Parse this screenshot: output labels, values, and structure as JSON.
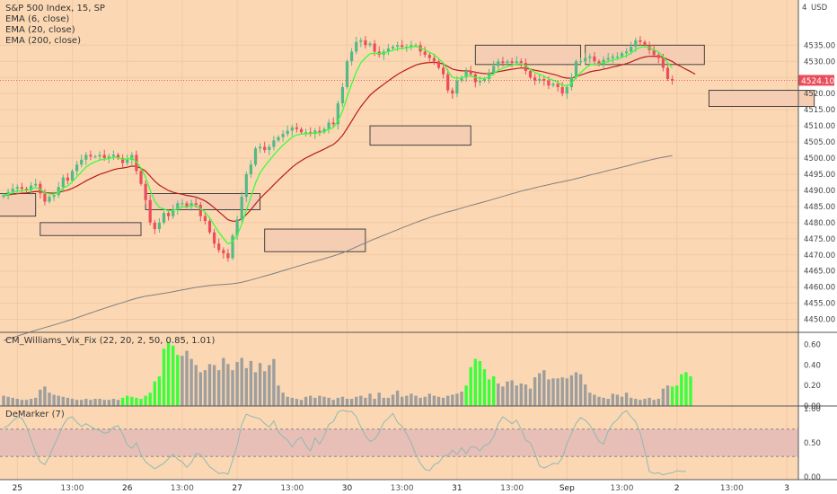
{
  "chart_data": [
    {
      "type": "candlestick",
      "title": "S&P 500 Index, 15, SP",
      "currency": "USD",
      "currency_marker": "4",
      "price_tag": "4524.10",
      "ylim": [
        4446,
        4549
      ],
      "yticks": [
        "4535.00",
        "4530.00",
        "4525.00",
        "4520.00",
        "4515.00",
        "4510.00",
        "4505.00",
        "4500.00",
        "4495.00",
        "4490.00",
        "4485.00",
        "4480.00",
        "4475.00",
        "4470.00",
        "4465.00",
        "4460.00",
        "4455.00",
        "4450.00"
      ],
      "ytick_values": [
        4535,
        4530,
        4525,
        4520,
        4515,
        4510,
        4505,
        4500,
        4495,
        4490,
        4485,
        4480,
        4475,
        4470,
        4465,
        4460,
        4455,
        4450
      ],
      "xticks": [
        {
          "label": "25",
          "bar": 3
        },
        {
          "label": "13:00",
          "bar": 15
        },
        {
          "label": "26",
          "bar": 27
        },
        {
          "label": "13:00",
          "bar": 39
        },
        {
          "label": "27",
          "bar": 51
        },
        {
          "label": "13:00",
          "bar": 63
        },
        {
          "label": "30",
          "bar": 75
        },
        {
          "label": "13:00",
          "bar": 87
        },
        {
          "label": "31",
          "bar": 99
        },
        {
          "label": "13:00",
          "bar": 111
        },
        {
          "label": "Sep",
          "bar": 123
        },
        {
          "label": "13:00",
          "bar": 135
        },
        {
          "label": "2",
          "bar": 147
        },
        {
          "label": "13:00",
          "bar": 159
        },
        {
          "label": "3",
          "bar": 171
        }
      ],
      "legend": [
        "EMA (6, close)",
        "EMA (20, close)",
        "EMA (200, close)"
      ],
      "close": [
        4488.5,
        4489.5,
        4490.5,
        4491,
        4490.5,
        4490,
        4491.5,
        4492,
        4489,
        4486.5,
        4488,
        4488.5,
        4491,
        4494,
        4493,
        4496,
        4498,
        4499.5,
        4501,
        4500.5,
        4500.5,
        4501,
        4500,
        4500.5,
        4501,
        4500,
        4498.5,
        4499.5,
        4501,
        4496,
        4492,
        4487,
        4480,
        4478,
        4480,
        4483,
        4482,
        4484,
        4486,
        4486,
        4485,
        4486,
        4485.5,
        4482,
        4480.5,
        4477,
        4473.5,
        4471.5,
        4470.5,
        4469,
        4476,
        4481,
        4488,
        4495,
        4498,
        4503,
        4503.5,
        4502.5,
        4503.5,
        4505.5,
        4506.5,
        4507.5,
        4508.5,
        4509.5,
        4509,
        4508,
        4508,
        4507.5,
        4508.5,
        4508,
        4509,
        4511,
        4510.5,
        4517,
        4522,
        4530,
        4533,
        4536,
        4536.5,
        4535,
        4535.5,
        4533,
        4532,
        4533,
        4534,
        4534.5,
        4535,
        4534.5,
        4534.5,
        4535,
        4535,
        4533,
        4532,
        4531,
        4530,
        4528,
        4526,
        4521,
        4520,
        4524,
        4525,
        4527,
        4526,
        4523.5,
        4524,
        4524.5,
        4526.5,
        4528.5,
        4530,
        4529.5,
        4530,
        4529.5,
        4530,
        4529.5,
        4527,
        4525,
        4524,
        4524.5,
        4524,
        4522.5,
        4523,
        4522,
        4520,
        4522,
        4525,
        4530,
        4530,
        4531,
        4531.5,
        4530,
        4529,
        4530.5,
        4531,
        4531.5,
        4531.5,
        4532.5,
        4533,
        4534.5,
        4536.5,
        4536,
        4535,
        4533.5,
        4532,
        4531,
        4528,
        4524.5,
        4524.1
      ],
      "lines": [
        {
          "name": "EMA (6, close)",
          "color": "#3aff3a"
        },
        {
          "name": "EMA (20, close)",
          "color": "#b71c1c"
        },
        {
          "name": "EMA (200, close)",
          "color": "#7f7f7f"
        }
      ],
      "boxes": [
        {
          "b0": -2,
          "b1": 7,
          "p0": 4482,
          "p1": 4489
        },
        {
          "b0": 8,
          "b1": 30,
          "p0": 4476,
          "p1": 4480
        },
        {
          "b0": 31,
          "b1": 56,
          "p0": 4484,
          "p1": 4489
        },
        {
          "b0": 57,
          "b1": 79,
          "p0": 4471,
          "p1": 4478
        },
        {
          "b0": 80,
          "b1": 102,
          "p0": 4504,
          "p1": 4510
        },
        {
          "b0": 103,
          "b1": 126,
          "p0": 4529,
          "p1": 4535
        },
        {
          "b0": 127,
          "b1": 153,
          "p0": 4529,
          "p1": 4535
        },
        {
          "b0": 154,
          "b1": 177,
          "p0": 4516,
          "p1": 4521
        }
      ]
    },
    {
      "type": "bar",
      "title": "CM_Williams_Vix_Fix (22, 20, 2, 50, 0.85, 1.01)",
      "ylim": [
        0,
        0.72
      ],
      "yticks": [
        "0.60",
        "0.40",
        "0.20",
        "0.00"
      ],
      "ytick_values": [
        0.6,
        0.4,
        0.2,
        0
      ],
      "values": [
        0.1,
        0.09,
        0.08,
        0.07,
        0.06,
        0.06,
        0.07,
        0.08,
        0.16,
        0.19,
        0.13,
        0.11,
        0.1,
        0.09,
        0.08,
        0.07,
        0.06,
        0.06,
        0.07,
        0.06,
        0.07,
        0.07,
        0.06,
        0.06,
        0.07,
        0.06,
        0.08,
        0.1,
        0.09,
        0.08,
        0.07,
        0.1,
        0.13,
        0.24,
        0.29,
        0.56,
        0.62,
        0.59,
        0.5,
        0.49,
        0.54,
        0.46,
        0.4,
        0.33,
        0.35,
        0.41,
        0.4,
        0.35,
        0.47,
        0.41,
        0.35,
        0.43,
        0.47,
        0.37,
        0.44,
        0.33,
        0.42,
        0.34,
        0.4,
        0.46,
        0.2,
        0.13,
        0.09,
        0.08,
        0.07,
        0.06,
        0.09,
        0.1,
        0.08,
        0.1,
        0.09,
        0.08,
        0.06,
        0.08,
        0.09,
        0.07,
        0.07,
        0.09,
        0.1,
        0.08,
        0.12,
        0.07,
        0.13,
        0.08,
        0.08,
        0.11,
        0.15,
        0.09,
        0.1,
        0.12,
        0.1,
        0.08,
        0.09,
        0.12,
        0.1,
        0.09,
        0.08,
        0.1,
        0.11,
        0.12,
        0.14,
        0.2,
        0.38,
        0.46,
        0.44,
        0.36,
        0.26,
        0.29,
        0.22,
        0.19,
        0.24,
        0.25,
        0.2,
        0.22,
        0.21,
        0.17,
        0.28,
        0.32,
        0.35,
        0.26,
        0.27,
        0.27,
        0.28,
        0.27,
        0.3,
        0.33,
        0.31,
        0.21,
        0.13,
        0.11,
        0.09,
        0.08,
        0.07,
        0.12,
        0.11,
        0.09,
        0.13,
        0.08,
        0.07,
        0.06,
        0.07,
        0.08,
        0.06,
        0.07,
        0.17,
        0.2,
        0.19,
        0.2,
        0.31,
        0.33,
        0.29
      ],
      "highlighted": [
        26,
        27,
        28,
        29,
        30,
        31,
        32,
        33,
        34,
        35,
        36,
        37,
        38,
        101,
        102,
        103,
        104,
        105,
        106,
        107,
        146,
        147,
        148,
        149,
        150,
        151,
        152
      ],
      "colors": {
        "normal": "#9e9e9e",
        "high": "#3aff3a"
      }
    },
    {
      "type": "line",
      "title": "DeMarker (7)",
      "ylim": [
        -0.04,
        1.04
      ],
      "yticks": [
        "1.00",
        "0.50",
        "0.00"
      ],
      "ytick_values": [
        1,
        0.5,
        0
      ],
      "band": [
        0.3,
        0.7
      ],
      "band_color": "#e8bfb7",
      "color": "#8fb9b2",
      "values": [
        0.72,
        0.75,
        0.82,
        0.88,
        0.86,
        0.74,
        0.55,
        0.36,
        0.22,
        0.18,
        0.3,
        0.46,
        0.6,
        0.76,
        0.86,
        0.88,
        0.8,
        0.74,
        0.78,
        0.74,
        0.7,
        0.68,
        0.64,
        0.66,
        0.73,
        0.75,
        0.63,
        0.47,
        0.42,
        0.5,
        0.33,
        0.22,
        0.17,
        0.12,
        0.16,
        0.2,
        0.27,
        0.33,
        0.26,
        0.22,
        0.14,
        0.21,
        0.34,
        0.33,
        0.24,
        0.15,
        0.1,
        0.05,
        0.06,
        0.04,
        0.24,
        0.46,
        0.77,
        0.92,
        0.89,
        0.87,
        0.85,
        0.78,
        0.73,
        0.82,
        0.66,
        0.59,
        0.54,
        0.44,
        0.54,
        0.58,
        0.46,
        0.38,
        0.57,
        0.48,
        0.6,
        0.77,
        0.81,
        0.95,
        0.98,
        0.96,
        0.96,
        0.88,
        0.73,
        0.6,
        0.52,
        0.55,
        0.65,
        0.8,
        0.86,
        0.93,
        0.8,
        0.74,
        0.63,
        0.5,
        0.33,
        0.2,
        0.11,
        0.09,
        0.18,
        0.21,
        0.3,
        0.32,
        0.39,
        0.33,
        0.43,
        0.34,
        0.44,
        0.44,
        0.38,
        0.46,
        0.49,
        0.59,
        0.78,
        0.88,
        0.83,
        0.78,
        0.83,
        0.7,
        0.54,
        0.5,
        0.35,
        0.16,
        0.13,
        0.16,
        0.2,
        0.19,
        0.28,
        0.49,
        0.64,
        0.79,
        0.87,
        0.83,
        0.76,
        0.64,
        0.52,
        0.48,
        0.67,
        0.78,
        0.84,
        0.93,
        0.97,
        0.88,
        0.81,
        0.64,
        0.38,
        0.08,
        0.05,
        0.06,
        0.03,
        0.05,
        0.06,
        0.09,
        0.08,
        0.08
      ]
    }
  ],
  "colors": {
    "background": "#fbd8b3",
    "grid": "#f2c9a5",
    "box_fill": "#f5cdb3",
    "box_stroke": "#333333",
    "up": "#53b987",
    "down": "#eb4d5c",
    "axis_bg": "#ffffff",
    "sep": "#555555"
  }
}
